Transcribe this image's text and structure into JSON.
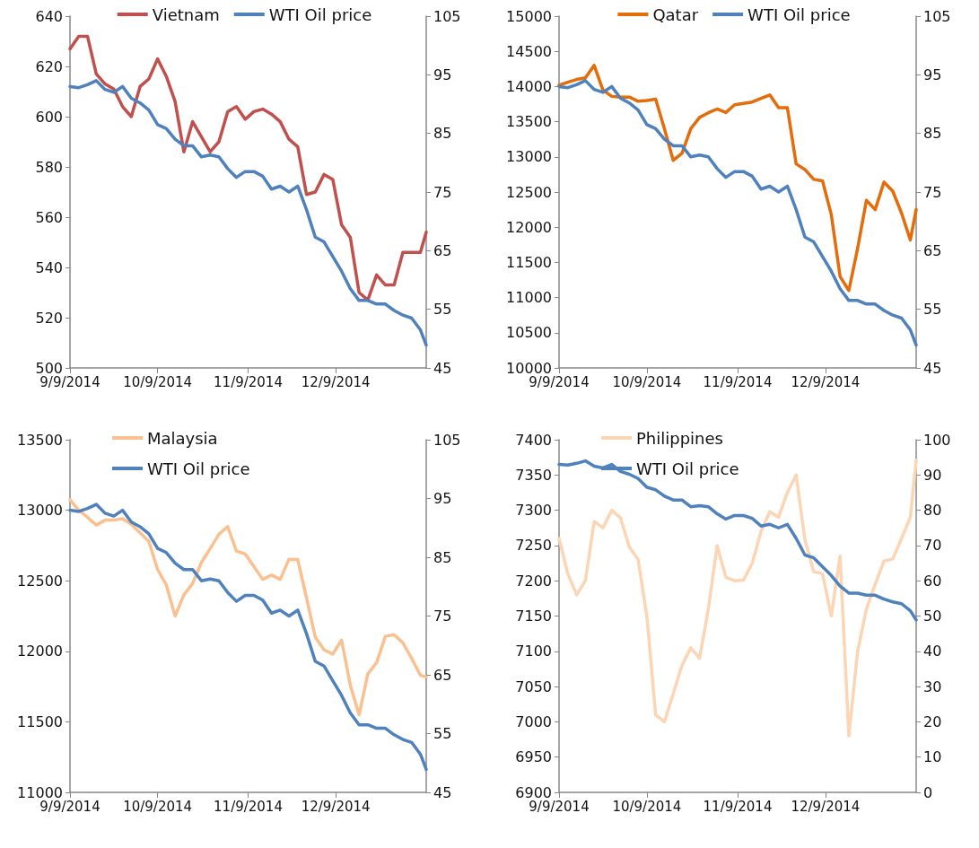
{
  "chart_data": [
    {
      "type": "line",
      "legend": "top",
      "grid": false,
      "marker": "none",
      "line_style": "solid",
      "x": [
        "2014-09-09",
        "2014-09-12",
        "2014-09-15",
        "2014-09-18",
        "2014-09-21",
        "2014-09-24",
        "2014-09-27",
        "2014-09-30",
        "2014-10-03",
        "2014-10-06",
        "2014-10-09",
        "2014-10-12",
        "2014-10-15",
        "2014-10-18",
        "2014-10-21",
        "2014-10-24",
        "2014-10-27",
        "2014-10-30",
        "2014-11-02",
        "2014-11-05",
        "2014-11-08",
        "2014-11-11",
        "2014-11-14",
        "2014-11-17",
        "2014-11-20",
        "2014-11-23",
        "2014-11-26",
        "2014-11-29",
        "2014-12-02",
        "2014-12-05",
        "2014-12-08",
        "2014-12-11",
        "2014-12-14",
        "2014-12-17",
        "2014-12-20",
        "2014-12-23",
        "2014-12-26",
        "2014-12-29",
        "2015-01-01",
        "2015-01-04",
        "2015-01-07",
        "2015-01-09"
      ],
      "xlim": [
        "2014-09-09",
        "2015-01-09"
      ],
      "xticks": [
        {
          "value": "2014-09-09",
          "label": "9/9/2014"
        },
        {
          "value": "2014-10-09",
          "label": "10/9/2014"
        },
        {
          "value": "2014-11-09",
          "label": "11/9/2014"
        },
        {
          "value": "2014-12-09",
          "label": "12/9/2014"
        }
      ],
      "ylim": [
        500,
        640
      ],
      "yticks": [
        500,
        520,
        540,
        560,
        580,
        600,
        620,
        640
      ],
      "y2lim": [
        45,
        105
      ],
      "y2ticks": [
        45,
        55,
        65,
        75,
        85,
        95,
        105
      ],
      "series": [
        {
          "name": "Vietnam",
          "color": "#c0504d",
          "values": [
            627,
            632,
            632,
            617,
            613,
            611,
            604,
            600,
            612,
            615,
            623,
            616,
            606,
            586,
            598,
            592,
            586,
            590,
            602,
            604,
            599,
            602,
            603,
            601,
            598,
            591,
            588,
            569,
            570,
            577,
            575,
            557,
            552,
            530,
            527,
            537,
            533,
            533,
            546,
            546,
            546,
            554
          ]
        },
        {
          "name": "WTI Oil price",
          "color": "#4f81bd",
          "axis": "y2",
          "values": [
            93,
            92.8,
            93.3,
            94,
            92.5,
            92,
            93,
            91,
            90.2,
            89,
            86.5,
            85.8,
            84,
            82.9,
            82.9,
            81,
            81.3,
            81,
            79,
            77.5,
            78.5,
            78.5,
            77.7,
            75.5,
            76,
            75,
            76,
            72,
            67.3,
            66.5,
            64,
            61.5,
            58.5,
            56.5,
            56.5,
            55.9,
            55.9,
            54.8,
            54,
            53.5,
            51.5,
            48.9
          ]
        }
      ]
    },
    {
      "type": "line",
      "legend": "top",
      "grid": false,
      "marker": "none",
      "line_style": "solid",
      "x": [
        "2014-09-09",
        "2014-09-12",
        "2014-09-15",
        "2014-09-18",
        "2014-09-21",
        "2014-09-24",
        "2014-09-27",
        "2014-09-30",
        "2014-10-03",
        "2014-10-06",
        "2014-10-09",
        "2014-10-12",
        "2014-10-15",
        "2014-10-18",
        "2014-10-21",
        "2014-10-24",
        "2014-10-27",
        "2014-10-30",
        "2014-11-02",
        "2014-11-05",
        "2014-11-08",
        "2014-11-11",
        "2014-11-14",
        "2014-11-17",
        "2014-11-20",
        "2014-11-23",
        "2014-11-26",
        "2014-11-29",
        "2014-12-02",
        "2014-12-05",
        "2014-12-08",
        "2014-12-11",
        "2014-12-14",
        "2014-12-17",
        "2014-12-20",
        "2014-12-23",
        "2014-12-26",
        "2014-12-29",
        "2015-01-01",
        "2015-01-04",
        "2015-01-07",
        "2015-01-09"
      ],
      "xlim": [
        "2014-09-09",
        "2015-01-09"
      ],
      "xticks": [
        {
          "value": "2014-09-09",
          "label": "9/9/2014"
        },
        {
          "value": "2014-10-09",
          "label": "10/9/2014"
        },
        {
          "value": "2014-11-09",
          "label": "11/9/2014"
        },
        {
          "value": "2014-12-09",
          "label": "12/9/2014"
        }
      ],
      "ylim": [
        10000,
        15000
      ],
      "yticks": [
        10000,
        10500,
        11000,
        11500,
        12000,
        12500,
        13000,
        13500,
        14000,
        14500,
        15000
      ],
      "y2lim": [
        45,
        105
      ],
      "y2ticks": [
        45,
        55,
        65,
        75,
        85,
        95,
        105
      ],
      "series": [
        {
          "name": "Qatar",
          "color": "#e46c0a",
          "values": [
            14018,
            14060,
            14100,
            14123,
            14300,
            13950,
            13860,
            13850,
            13850,
            13790,
            13800,
            13820,
            13400,
            12950,
            13050,
            13400,
            13560,
            13626,
            13680,
            13630,
            13740,
            13760,
            13780,
            13830,
            13880,
            13700,
            13700,
            12900,
            12820,
            12680,
            12660,
            12180,
            11300,
            11100,
            11700,
            12382,
            12250,
            12640,
            12513,
            12200,
            11819,
            12251
          ]
        },
        {
          "name": "WTI Oil price",
          "color": "#4f81bd",
          "axis": "y2",
          "values": [
            93,
            92.8,
            93.3,
            94,
            92.5,
            92,
            93,
            91,
            90.2,
            89,
            86.5,
            85.8,
            84,
            82.9,
            82.9,
            81,
            81.3,
            81,
            79,
            77.5,
            78.5,
            78.5,
            77.7,
            75.5,
            76,
            75,
            76,
            72,
            67.3,
            66.5,
            64,
            61.5,
            58.5,
            56.5,
            56.5,
            55.9,
            55.9,
            54.8,
            54,
            53.5,
            51.5,
            48.9
          ]
        }
      ]
    },
    {
      "type": "line",
      "legend": "top left",
      "grid": false,
      "marker": "none",
      "line_style": "solid",
      "x": [
        "2014-09-09",
        "2014-09-12",
        "2014-09-15",
        "2014-09-18",
        "2014-09-21",
        "2014-09-24",
        "2014-09-27",
        "2014-09-30",
        "2014-10-03",
        "2014-10-06",
        "2014-10-09",
        "2014-10-12",
        "2014-10-15",
        "2014-10-18",
        "2014-10-21",
        "2014-10-24",
        "2014-10-27",
        "2014-10-30",
        "2014-11-02",
        "2014-11-05",
        "2014-11-08",
        "2014-11-11",
        "2014-11-14",
        "2014-11-17",
        "2014-11-20",
        "2014-11-23",
        "2014-11-26",
        "2014-11-29",
        "2014-12-02",
        "2014-12-05",
        "2014-12-08",
        "2014-12-11",
        "2014-12-14",
        "2014-12-17",
        "2014-12-20",
        "2014-12-23",
        "2014-12-26",
        "2014-12-29",
        "2015-01-01",
        "2015-01-04",
        "2015-01-07",
        "2015-01-09"
      ],
      "xlim": [
        "2014-09-09",
        "2015-01-09"
      ],
      "xticks": [
        {
          "value": "2014-09-09",
          "label": "9/9/2014"
        },
        {
          "value": "2014-10-09",
          "label": "10/9/2014"
        },
        {
          "value": "2014-11-09",
          "label": "11/9/2014"
        },
        {
          "value": "2014-12-09",
          "label": "12/9/2014"
        }
      ],
      "ylim": [
        11000,
        13500
      ],
      "yticks": [
        11000,
        11500,
        12000,
        12500,
        13000,
        13500
      ],
      "y2lim": [
        45,
        105
      ],
      "y2ticks": [
        45,
        55,
        65,
        75,
        85,
        95,
        105
      ],
      "series": [
        {
          "name": "Malaysia",
          "color": "#fac090",
          "values": [
            13074,
            13000,
            12950,
            12895,
            12930,
            12930,
            12940,
            12900,
            12840,
            12780,
            12580,
            12470,
            12250,
            12400,
            12480,
            12630,
            12728,
            12830,
            12884,
            12711,
            12690,
            12600,
            12510,
            12540,
            12510,
            12653,
            12650,
            12380,
            12100,
            12010,
            11980,
            12080,
            11760,
            11550,
            11840,
            11920,
            12106,
            12118,
            12060,
            11950,
            11830,
            11818
          ]
        },
        {
          "name": "WTI Oil price",
          "color": "#4f81bd",
          "axis": "y2",
          "values": [
            93,
            92.8,
            93.3,
            94,
            92.5,
            92,
            93,
            91,
            90.2,
            89,
            86.5,
            85.8,
            84,
            82.9,
            82.9,
            81,
            81.3,
            81,
            79,
            77.5,
            78.5,
            78.5,
            77.7,
            75.5,
            76,
            75,
            76,
            72,
            67.3,
            66.5,
            64,
            61.5,
            58.5,
            56.5,
            56.5,
            55.9,
            55.9,
            54.8,
            54,
            53.5,
            51.5,
            48.9
          ]
        }
      ]
    },
    {
      "type": "line",
      "legend": "top left",
      "grid": false,
      "marker": "none",
      "line_style": "solid",
      "x": [
        "2014-09-09",
        "2014-09-12",
        "2014-09-15",
        "2014-09-18",
        "2014-09-21",
        "2014-09-24",
        "2014-09-27",
        "2014-09-30",
        "2014-10-03",
        "2014-10-06",
        "2014-10-09",
        "2014-10-12",
        "2014-10-15",
        "2014-10-18",
        "2014-10-21",
        "2014-10-24",
        "2014-10-27",
        "2014-10-30",
        "2014-11-02",
        "2014-11-05",
        "2014-11-08",
        "2014-11-11",
        "2014-11-14",
        "2014-11-17",
        "2014-11-20",
        "2014-11-23",
        "2014-11-26",
        "2014-11-29",
        "2014-12-02",
        "2014-12-05",
        "2014-12-08",
        "2014-12-11",
        "2014-12-14",
        "2014-12-17",
        "2014-12-20",
        "2014-12-23",
        "2014-12-26",
        "2014-12-29",
        "2015-01-01",
        "2015-01-04",
        "2015-01-07",
        "2015-01-09"
      ],
      "xlim": [
        "2014-09-09",
        "2015-01-09"
      ],
      "xticks": [
        {
          "value": "2014-09-09",
          "label": "9/9/2014"
        },
        {
          "value": "2014-10-09",
          "label": "10/9/2014"
        },
        {
          "value": "2014-11-09",
          "label": "11/9/2014"
        },
        {
          "value": "2014-12-09",
          "label": "12/9/2014"
        }
      ],
      "ylim": [
        6900,
        7400
      ],
      "yticks": [
        6900,
        6950,
        7000,
        7050,
        7100,
        7150,
        7200,
        7250,
        7300,
        7350,
        7400
      ],
      "y2lim": [
        0,
        100
      ],
      "y2ticks": [
        0,
        10,
        20,
        30,
        40,
        50,
        60,
        70,
        80,
        90,
        100
      ],
      "series": [
        {
          "name": "Philippines",
          "color": "#fcd5b5",
          "values": [
            7260,
            7210,
            7180,
            7200,
            7284,
            7275,
            7300,
            7289,
            7248,
            7230,
            7150,
            7010,
            7000,
            7040,
            7080,
            7105,
            7090,
            7160,
            7250,
            7205,
            7200,
            7201,
            7225,
            7270,
            7298,
            7290,
            7325,
            7350,
            7258,
            7213,
            7210,
            7150,
            7235,
            6980,
            7100,
            7160,
            7195,
            7228,
            7231,
            7260,
            7290,
            7371
          ]
        },
        {
          "name": "WTI Oil price",
          "color": "#4f81bd",
          "axis": "y2",
          "values": [
            93,
            92.8,
            93.3,
            94,
            92.5,
            92,
            93,
            91,
            90.2,
            89,
            86.5,
            85.8,
            84,
            82.9,
            82.9,
            81,
            81.3,
            81,
            79,
            77.5,
            78.5,
            78.5,
            77.7,
            75.5,
            76,
            75,
            76,
            72,
            67.3,
            66.5,
            64,
            61.5,
            58.5,
            56.5,
            56.5,
            55.9,
            55.9,
            54.8,
            54,
            53.5,
            51.5,
            48.9
          ]
        }
      ]
    }
  ]
}
